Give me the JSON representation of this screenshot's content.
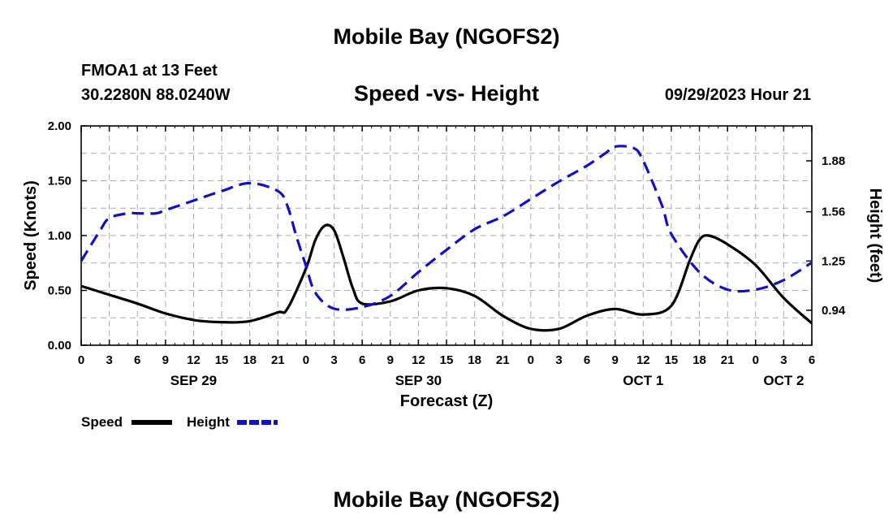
{
  "page": {
    "title_top": "Mobile Bay (NGOFS2)",
    "title_bottom": "Mobile Bay (NGOFS2)"
  },
  "header": {
    "station": "FMOA1 at 13 Feet",
    "coords": "30.2280N  88.0240W",
    "chart_title": "Speed -vs- Height",
    "timestamp": "09/29/2023 Hour 21"
  },
  "legend": {
    "speed_label": "Speed",
    "height_label": "Height"
  },
  "colors": {
    "speed": "#000000",
    "height": "#1010cc",
    "grid": "#aaaaaa"
  },
  "chart_data": {
    "type": "line",
    "title": "Speed -vs- Height",
    "xlabel": "Forecast (Z)",
    "ylabel": "Speed (Knots)",
    "y2label": "Height (feet)",
    "ylim": [
      0,
      2.0
    ],
    "y2lim": [
      0.72,
      2.1
    ],
    "x_range_hours": [
      0,
      78
    ],
    "x_tick_hours": [
      0,
      3,
      6,
      9,
      12,
      15,
      18,
      21,
      24,
      27,
      30,
      33,
      36,
      39,
      42,
      45,
      48,
      51,
      54,
      57,
      60,
      63,
      66,
      69,
      72,
      75,
      78
    ],
    "x_tick_labels": [
      "0",
      "3",
      "6",
      "9",
      "12",
      "15",
      "18",
      "21",
      "0",
      "3",
      "6",
      "9",
      "12",
      "15",
      "18",
      "21",
      "0",
      "3",
      "6",
      "9",
      "12",
      "15",
      "18",
      "21",
      "0",
      "3",
      "6"
    ],
    "date_labels": [
      {
        "hour": 12,
        "label": "SEP 29"
      },
      {
        "hour": 36,
        "label": "SEP 30"
      },
      {
        "hour": 60,
        "label": "OCT 1"
      },
      {
        "hour": 75,
        "label": "OCT 2"
      }
    ],
    "y_ticks": [
      0,
      0.5,
      1.0,
      1.5,
      2.0
    ],
    "y_tick_labels": [
      "0.00",
      "0.50",
      "1.00",
      "1.50",
      "2.00"
    ],
    "y2_ticks": [
      0.94,
      1.25,
      1.56,
      1.88
    ],
    "y2_tick_labels": [
      "0.94",
      "1.25",
      "1.56",
      "1.88"
    ],
    "series": [
      {
        "name": "Speed",
        "axis": "left",
        "style": "solid",
        "x": [
          0,
          3,
          6,
          9,
          12,
          15,
          18,
          21,
          22,
          24,
          25,
          26,
          27,
          28,
          29,
          30,
          33,
          36,
          39,
          42,
          45,
          48,
          51,
          54,
          57,
          60,
          63,
          65,
          66,
          67,
          69,
          72,
          75,
          78
        ],
        "values": [
          0.54,
          0.46,
          0.38,
          0.29,
          0.23,
          0.21,
          0.22,
          0.3,
          0.33,
          0.7,
          0.96,
          1.09,
          1.05,
          0.8,
          0.52,
          0.38,
          0.4,
          0.5,
          0.52,
          0.45,
          0.27,
          0.15,
          0.15,
          0.27,
          0.33,
          0.28,
          0.36,
          0.78,
          0.96,
          1.0,
          0.92,
          0.73,
          0.43,
          0.2
        ]
      },
      {
        "name": "Height",
        "axis": "right",
        "style": "dashed",
        "x": [
          0,
          2,
          3,
          5,
          6,
          8,
          9,
          12,
          15,
          18,
          21,
          22,
          23,
          24,
          25,
          27,
          30,
          33,
          36,
          39,
          42,
          45,
          48,
          51,
          54,
          56,
          57,
          59,
          60,
          62,
          63,
          66,
          69,
          72,
          75,
          78
        ],
        "values": [
          1.25,
          1.44,
          1.52,
          1.55,
          1.55,
          1.55,
          1.57,
          1.63,
          1.69,
          1.74,
          1.69,
          1.6,
          1.4,
          1.22,
          1.05,
          0.95,
          0.96,
          1.03,
          1.18,
          1.32,
          1.45,
          1.53,
          1.64,
          1.75,
          1.85,
          1.93,
          1.97,
          1.96,
          1.88,
          1.6,
          1.42,
          1.18,
          1.07,
          1.07,
          1.13,
          1.24
        ]
      }
    ]
  }
}
